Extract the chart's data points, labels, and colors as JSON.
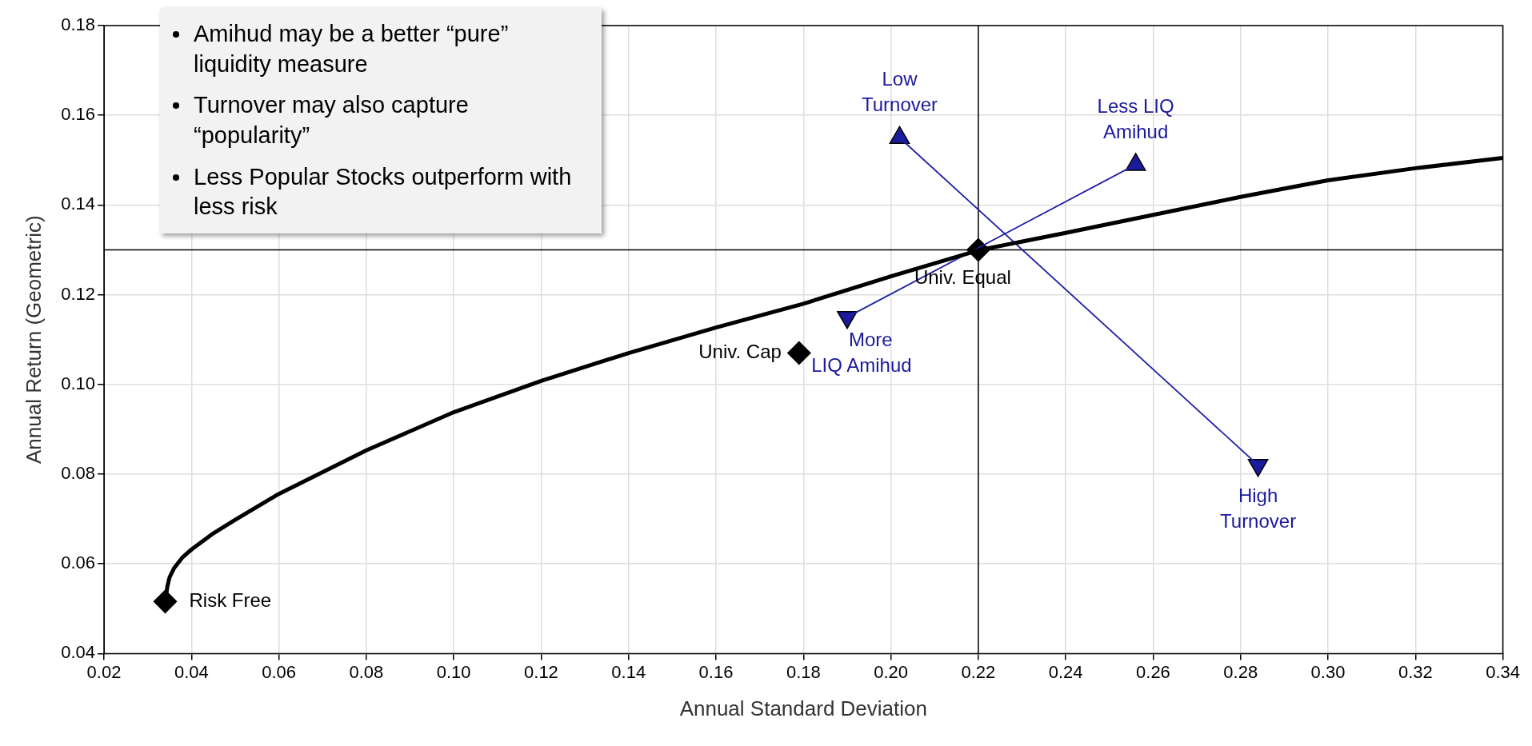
{
  "chart_data": {
    "type": "scatter",
    "xlabel": "Annual Standard Deviation",
    "ylabel": "Annual Return (Geometric)",
    "xlim": [
      0.02,
      0.34
    ],
    "ylim": [
      0.04,
      0.18
    ],
    "xticks": [
      0.02,
      0.04,
      0.06,
      0.08,
      {
        "value": 0.1,
        "label": "0.10"
      },
      0.12,
      0.14,
      0.16,
      0.18,
      {
        "value": 0.2,
        "label": "0.20"
      },
      0.22,
      0.24,
      0.26,
      0.28,
      {
        "value": 0.3,
        "label": "0.30"
      },
      0.32,
      0.34
    ],
    "yticks": [
      0.04,
      0.06,
      0.08,
      {
        "value": 0.1,
        "label": "0.10"
      },
      0.12,
      0.14,
      0.16,
      0.18
    ],
    "grid": true,
    "legend": false,
    "ref_lines": [
      {
        "axis": "x",
        "value": 0.22,
        "color": "#000000"
      },
      {
        "axis": "y",
        "value": 0.13,
        "color": "#000000"
      }
    ],
    "annotations": [
      "Amihud may be a better “pure” liquidity measure",
      "Turnover may also capture “popularity”",
      "Less Popular Stocks outperform with less risk"
    ],
    "series": [
      {
        "type": "line",
        "color": "#000000",
        "marker": "none",
        "x": [
          0.034,
          0.0345,
          0.035,
          0.036,
          0.038,
          0.04,
          0.045,
          0.05,
          0.06,
          0.08,
          0.1,
          0.12,
          0.14,
          0.16,
          0.18,
          0.2,
          0.22,
          0.24,
          0.26,
          0.28,
          0.3,
          0.32,
          0.34
        ],
        "values": [
          0.0516,
          0.055,
          0.057,
          0.059,
          0.0615,
          0.0632,
          0.0668,
          0.0698,
          0.0756,
          0.0853,
          0.0938,
          0.1008,
          0.107,
          0.1127,
          0.118,
          0.1241,
          0.1299,
          0.1338,
          0.1378,
          0.1418,
          0.1455,
          0.1482,
          0.1505
        ]
      },
      {
        "type": "line",
        "color": "#2020a8",
        "marker": "none",
        "x": [
          0.202,
          0.284
        ],
        "values": [
          0.155,
          0.082
        ]
      },
      {
        "type": "line",
        "color": "#2020a8",
        "marker": "none",
        "x": [
          0.19,
          0.256
        ],
        "values": [
          0.115,
          0.149
        ]
      },
      {
        "type": "scatter",
        "name": "Risk Free",
        "color": "#000000",
        "marker": "diamond",
        "x": [
          0.034
        ],
        "values": [
          0.0516
        ]
      },
      {
        "type": "scatter",
        "name": "Univ. Cap",
        "color": "#000000",
        "marker": "diamond",
        "x": [
          0.179
        ],
        "values": [
          0.107
        ]
      },
      {
        "type": "scatter",
        "name": "Univ. Equal",
        "color": "#000000",
        "marker": "diamond",
        "x": [
          0.22
        ],
        "values": [
          0.13
        ]
      },
      {
        "type": "scatter",
        "name": "Low Turnover",
        "color": "#1a1a9c",
        "marker": "triangle",
        "x": [
          0.202
        ],
        "values": [
          0.155
        ]
      },
      {
        "type": "scatter",
        "name": "Less LIQ Amihud",
        "color": "#1a1a9c",
        "marker": "triangle",
        "x": [
          0.256
        ],
        "values": [
          0.149
        ]
      },
      {
        "type": "scatter",
        "name": "More LIQ Amihud",
        "color": "#1a1a9c",
        "marker": "triangle-down",
        "x": [
          0.19
        ],
        "values": [
          0.115
        ]
      },
      {
        "type": "scatter",
        "name": "High Turnover",
        "color": "#1a1a9c",
        "marker": "triangle-down",
        "x": [
          0.284
        ],
        "values": [
          0.082
        ]
      }
    ]
  }
}
